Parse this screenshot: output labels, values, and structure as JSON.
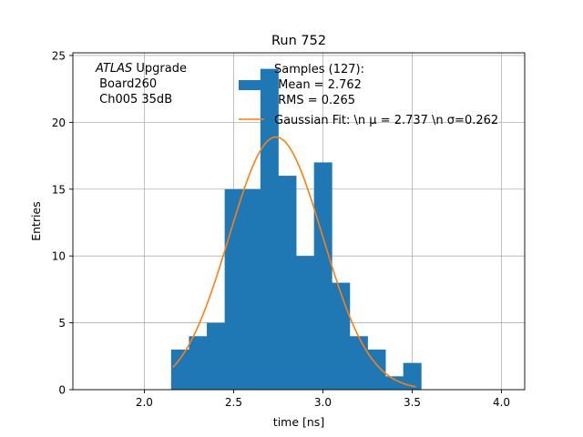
{
  "chart_data": {
    "type": "bar",
    "title": "Run 752",
    "xlabel": "time [ns]",
    "ylabel": "Entries",
    "xlim": [
      1.6,
      4.13
    ],
    "ylim": [
      0,
      25.2
    ],
    "grid": true,
    "xticks": [
      2.0,
      2.5,
      3.0,
      3.5,
      4.0
    ],
    "xtick_labels": [
      "2.0",
      "2.5",
      "3.0",
      "3.5",
      "4.0"
    ],
    "yticks": [
      0,
      5,
      10,
      15,
      20,
      25
    ],
    "ytick_labels": [
      "0",
      "5",
      "10",
      "15",
      "20",
      "25"
    ],
    "bin_edges": [
      2.15,
      2.25,
      2.35,
      2.45,
      2.55,
      2.65,
      2.75,
      2.85,
      2.95,
      3.05,
      3.15,
      3.25,
      3.35,
      3.45,
      3.55
    ],
    "counts": [
      3,
      4,
      5,
      15,
      15,
      24,
      16,
      10,
      17,
      8,
      4,
      3,
      1,
      2
    ],
    "histogram_color": "#1f77b4",
    "fit": {
      "mu": 2.737,
      "sigma": 0.262,
      "amplitude": 18.9,
      "x_range": [
        2.16,
        3.52
      ],
      "color": "#ff7f0e"
    },
    "annotation": {
      "line1_italic": "ATLAS",
      "line1_rest": " Upgrade",
      "line2": " Board260",
      "line3": " Ch005 35dB"
    },
    "legend": {
      "placement": "top-right",
      "entries": [
        {
          "kind": "patch",
          "color": "#1f77b4",
          "lines": [
            "Samples (127):",
            " Mean = 2.762",
            " RMS = 0.265"
          ]
        },
        {
          "kind": "line",
          "color": "#ff7f0e",
          "text": "Gaussian Fit: \\n μ = 2.737 \\n σ=0.262"
        }
      ]
    }
  }
}
